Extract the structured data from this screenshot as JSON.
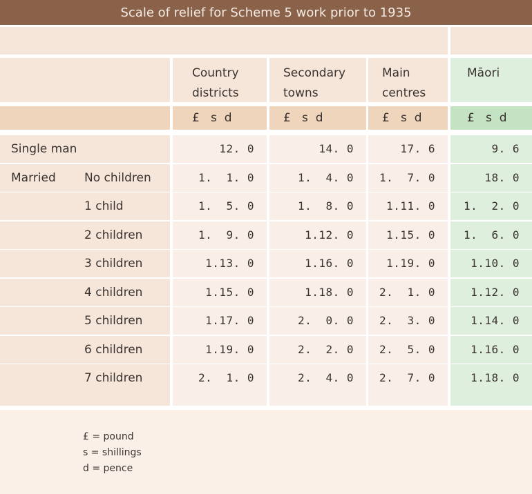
{
  "title": "Scale of relief for Scheme 5 work prior to 1935",
  "columns": [
    {
      "label_line1": "Country",
      "label_line2": "districts",
      "currency": "£   s  d"
    },
    {
      "label_line1": "Secondary",
      "label_line2": "towns",
      "currency": "£   s  d"
    },
    {
      "label_line1": "Main",
      "label_line2": "centres",
      "currency": "£   s  d"
    },
    {
      "label_line1": "Māori",
      "label_line2": "",
      "currency": "£   s  d"
    }
  ],
  "rows": [
    {
      "group": "Single man",
      "label": "",
      "values": [
        "12. 0",
        "14. 0",
        "17. 6",
        "9. 6"
      ]
    },
    {
      "group": "Married",
      "label": "No children",
      "values": [
        "1.  1. 0",
        "1.  4. 0",
        "1.  7. 0",
        "18. 0"
      ]
    },
    {
      "group": "",
      "label": "1 child",
      "values": [
        "1.  5. 0",
        "1.  8. 0",
        "1.11. 0",
        "1.  2. 0"
      ]
    },
    {
      "group": "",
      "label": "2 children",
      "values": [
        "1.  9. 0",
        "1.12. 0",
        "1.15. 0",
        "1.  6. 0"
      ]
    },
    {
      "group": "",
      "label": "3 children",
      "values": [
        "1.13. 0",
        "1.16. 0",
        "1.19. 0",
        "1.10. 0"
      ]
    },
    {
      "group": "",
      "label": "4 children",
      "values": [
        "1.15. 0",
        "1.18. 0",
        "2.  1. 0",
        "1.12. 0"
      ]
    },
    {
      "group": "",
      "label": "5 children",
      "values": [
        "1.17. 0",
        "2.  0. 0",
        "2.  3. 0",
        "1.14. 0"
      ]
    },
    {
      "group": "",
      "label": "6 children",
      "values": [
        "1.19. 0",
        "2.  2. 0",
        "2.  5. 0",
        "1.16. 0"
      ]
    },
    {
      "group": "",
      "label": "7 children",
      "values": [
        "2.  1. 0",
        "2.  4. 0",
        "2.  7. 0",
        "1.18. 0"
      ]
    }
  ],
  "legend": [
    "£ = pound",
    "s = shillings",
    "d = pence"
  ],
  "colors": {
    "title_bar": "#8a624a",
    "label_bg": "#f5e6d9",
    "data_bg": "#f9efe8",
    "currency_bg": "#f0d5bd",
    "maori_bg": "#def0dd",
    "maori_currency_bg": "#c4e3c3"
  }
}
